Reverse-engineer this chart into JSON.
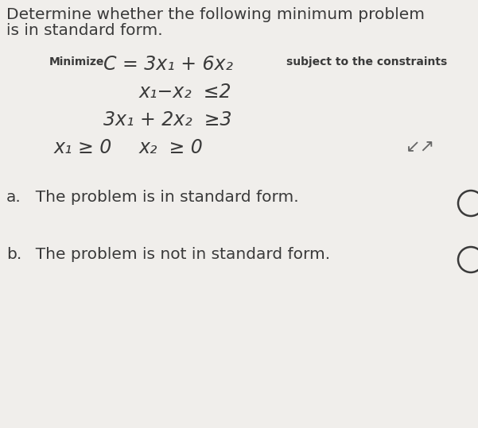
{
  "bg_color": "#f0eeeb",
  "title_line1": "Determine whether the following minimum problem",
  "title_line2": "is in standard form.",
  "minimize_label": "Minimize",
  "objective_text": "C = 3x₁ + 6x₂",
  "subject_to": "subject to the constraints",
  "constraint1": "x₁−x₂  ≤2",
  "constraint2": "3x₁ + 2x₂  ≥3",
  "constraint3_left": "x₁ ≥ 0",
  "constraint3_right": "x₂  ≥ 0",
  "option_a_prefix": "a.",
  "option_a_text": "  The problem is in standard form.",
  "option_b_prefix": "b.",
  "option_b_text": "  The problem is not in standard form.",
  "font_color": "#3a3a3a",
  "radio_color": "#3a3a3a",
  "title_fontsize": 14.5,
  "math_fontsize": 17,
  "small_fontsize": 10,
  "option_fontsize": 14.5
}
